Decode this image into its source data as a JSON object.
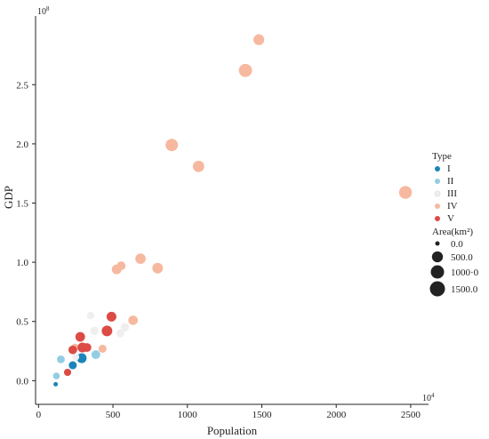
{
  "chart_data": {
    "type": "scatter",
    "xlabel": "Population",
    "ylabel": "GDP",
    "x_multiplier_label": "10",
    "x_multiplier_exp": "4",
    "y_multiplier_label": "10",
    "y_multiplier_exp": "8",
    "xlim": [
      -20,
      2620
    ],
    "ylim": [
      -0.2,
      3.08
    ],
    "x_ticks": [
      0,
      500,
      1000,
      1500,
      2000,
      2500
    ],
    "y_ticks": [
      0.0,
      0.5,
      1.0,
      1.5,
      2.0,
      2.5
    ],
    "y_tick_labels": [
      "0.0",
      "0.5",
      "1.0",
      "1.5",
      "2.0",
      "2.5"
    ],
    "grid": false,
    "legend_position": "right",
    "type_legend": {
      "title": "Type",
      "entries": [
        {
          "label": "I",
          "color": "#1a85b8"
        },
        {
          "label": "II",
          "color": "#93cde3"
        },
        {
          "label": "III",
          "color": "#efefef"
        },
        {
          "label": "IV",
          "color": "#f6b99f"
        },
        {
          "label": "V",
          "color": "#dc4b45"
        }
      ]
    },
    "size_legend": {
      "title": "Area(km²)",
      "entries": [
        {
          "label": "0.0",
          "value": 0
        },
        {
          "label": "500.0",
          "value": 500
        },
        {
          "label": "1000·0",
          "value": 1000
        },
        {
          "label": "1500.0",
          "value": 1500
        }
      ]
    },
    "series": [
      {
        "name": "I",
        "color": "#1a85b8",
        "points": [
          {
            "x": 115,
            "y": -0.03,
            "area": 0
          },
          {
            "x": 230,
            "y": 0.13,
            "area": 200
          },
          {
            "x": 290,
            "y": 0.19,
            "area": 450
          }
        ]
      },
      {
        "name": "II",
        "color": "#93cde3",
        "points": [
          {
            "x": 120,
            "y": 0.04,
            "area": 80
          },
          {
            "x": 150,
            "y": 0.18,
            "area": 180
          },
          {
            "x": 385,
            "y": 0.22,
            "area": 300
          }
        ]
      },
      {
        "name": "III",
        "color": "#efefef",
        "points": [
          {
            "x": 250,
            "y": 0.2,
            "area": 100
          },
          {
            "x": 350,
            "y": 0.55,
            "area": 150
          },
          {
            "x": 375,
            "y": 0.42,
            "area": 250
          },
          {
            "x": 550,
            "y": 0.4,
            "area": 200
          },
          {
            "x": 580,
            "y": 0.45,
            "area": 250
          }
        ]
      },
      {
        "name": "IV",
        "color": "#f6b99f",
        "points": [
          {
            "x": 245,
            "y": 0.28,
            "area": 150
          },
          {
            "x": 430,
            "y": 0.27,
            "area": 200
          },
          {
            "x": 635,
            "y": 0.51,
            "area": 400
          },
          {
            "x": 525,
            "y": 0.94,
            "area": 450
          },
          {
            "x": 555,
            "y": 0.97,
            "area": 300
          },
          {
            "x": 685,
            "y": 1.03,
            "area": 550
          },
          {
            "x": 800,
            "y": 0.95,
            "area": 600
          },
          {
            "x": 895,
            "y": 1.99,
            "area": 1000
          },
          {
            "x": 1075,
            "y": 1.81,
            "area": 750
          },
          {
            "x": 1390,
            "y": 2.62,
            "area": 1200
          },
          {
            "x": 1480,
            "y": 2.88,
            "area": 650
          },
          {
            "x": 2465,
            "y": 1.59,
            "area": 1100
          }
        ]
      },
      {
        "name": "V",
        "color": "#dc4b45",
        "points": [
          {
            "x": 195,
            "y": 0.07,
            "area": 120
          },
          {
            "x": 230,
            "y": 0.26,
            "area": 280
          },
          {
            "x": 280,
            "y": 0.37,
            "area": 420
          },
          {
            "x": 295,
            "y": 0.28,
            "area": 450
          },
          {
            "x": 325,
            "y": 0.28,
            "area": 300
          },
          {
            "x": 460,
            "y": 0.42,
            "area": 600
          },
          {
            "x": 490,
            "y": 0.54,
            "area": 450
          }
        ]
      }
    ]
  }
}
